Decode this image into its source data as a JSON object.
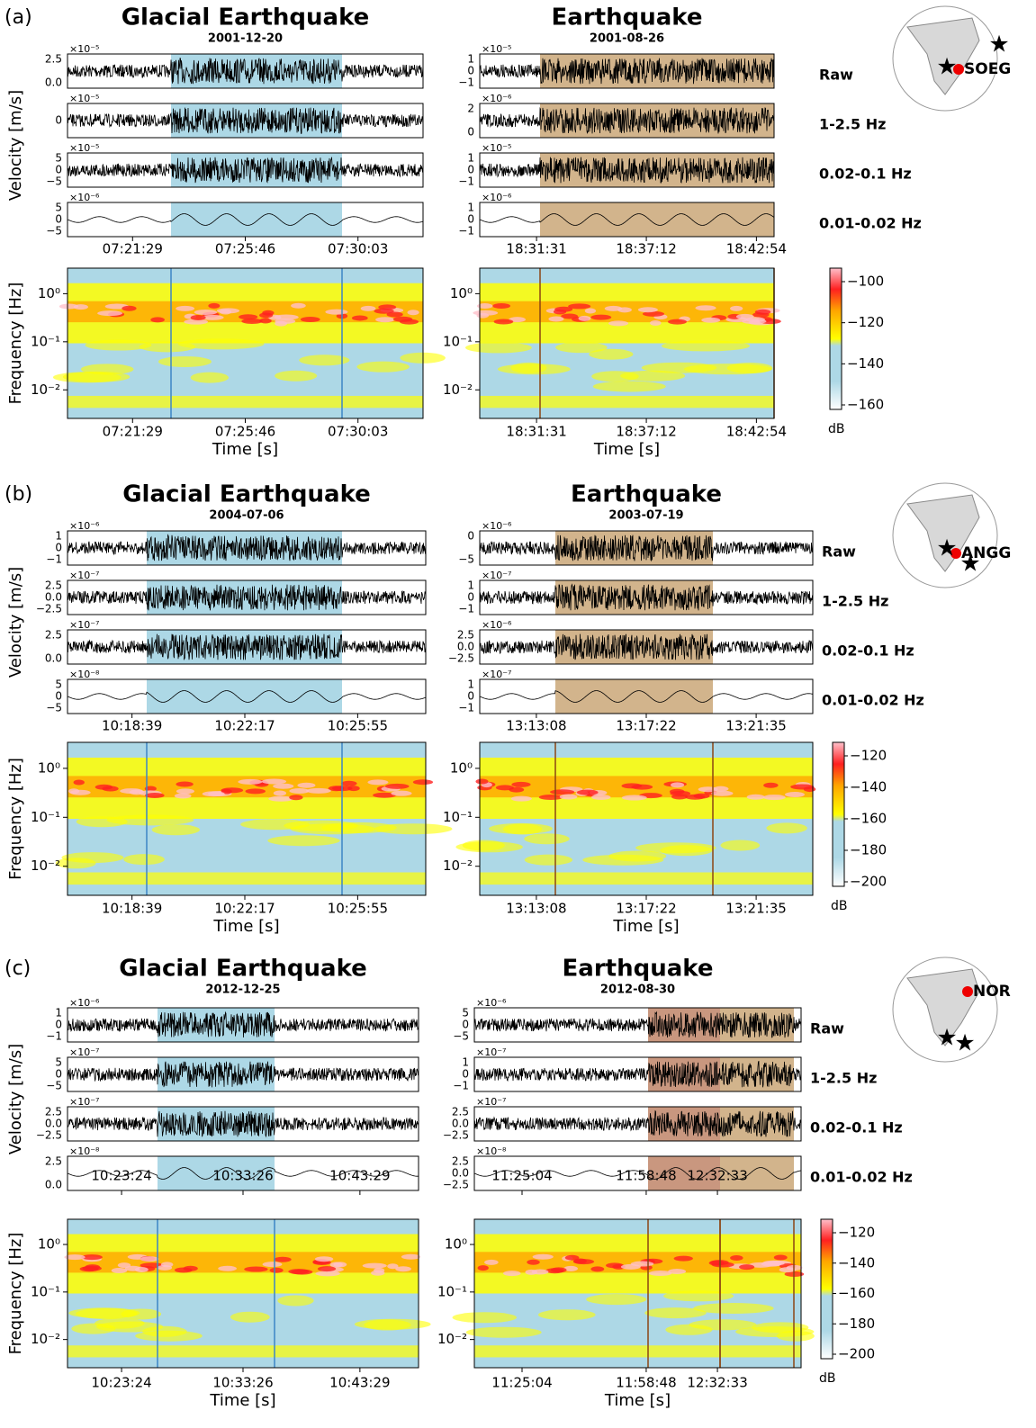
{
  "figure": {
    "ylabel_velocity": "Velocity [m/s]",
    "ylabel_frequency": "Frequency [Hz]",
    "xlabel": "Time [s]",
    "colorbar_unit": "dB",
    "freq_ticks": [
      "10⁰",
      "10⁻¹",
      "10⁻²"
    ],
    "rows": [
      {
        "label": "(a)",
        "station": "SOEG",
        "bands": [
          "Raw",
          "1-2.5 Hz",
          "0.02-0.1 Hz",
          "0.01-0.02 Hz"
        ],
        "colorbar_ticks": [
          "−100",
          "−120",
          "−140",
          "−160"
        ],
        "columns": [
          {
            "title": "Glacial Earthquake",
            "date": "2001-12-20",
            "times": [
              "07:21:29",
              "07:25:46",
              "07:30:03"
            ],
            "traces": [
              {
                "scale": "×10⁻⁵",
                "yticks": [
                  "2.5",
                  "0.0"
                ]
              },
              {
                "scale": "×10⁻⁵",
                "yticks": [
                  "0"
                ]
              },
              {
                "scale": "×10⁻⁵",
                "yticks": [
                  "5",
                  "0",
                  "−5"
                ]
              },
              {
                "scale": "×10⁻⁶",
                "yticks": [
                  "5",
                  "0",
                  "−5"
                ]
              }
            ]
          },
          {
            "title": "Earthquake",
            "date": "2001-08-26",
            "times": [
              "18:31:31",
              "18:37:12",
              "18:42:54"
            ],
            "traces": [
              {
                "scale": "×10⁻⁵",
                "yticks": [
                  "1",
                  "0",
                  "−1"
                ]
              },
              {
                "scale": "×10⁻⁶",
                "yticks": [
                  "2",
                  "0"
                ]
              },
              {
                "scale": "×10⁻⁵",
                "yticks": [
                  "1",
                  "0",
                  "−1"
                ]
              },
              {
                "scale": "×10⁻⁶",
                "yticks": [
                  "1",
                  "0",
                  "−1"
                ]
              }
            ]
          }
        ]
      },
      {
        "label": "(b)",
        "station": "ANGG",
        "bands": [
          "Raw",
          "1-2.5 Hz",
          "0.02-0.1 Hz",
          "0.01-0.02 Hz"
        ],
        "colorbar_ticks": [
          "−120",
          "−140",
          "−160",
          "−180",
          "−200"
        ],
        "columns": [
          {
            "title": "Glacial Earthquake",
            "date": "2004-07-06",
            "times": [
              "10:18:39",
              "10:22:17",
              "10:25:55"
            ],
            "traces": [
              {
                "scale": "×10⁻⁶",
                "yticks": [
                  "1",
                  "0",
                  "−1"
                ]
              },
              {
                "scale": "×10⁻⁷",
                "yticks": [
                  "2.5",
                  "0.0",
                  "−2.5"
                ]
              },
              {
                "scale": "×10⁻⁷",
                "yticks": [
                  "2.5",
                  "0.0"
                ]
              },
              {
                "scale": "×10⁻⁸",
                "yticks": [
                  "5",
                  "0",
                  "−5"
                ]
              }
            ]
          },
          {
            "title": "Earthquake",
            "date": "2003-07-19",
            "times": [
              "13:13:08",
              "13:17:22",
              "13:21:35"
            ],
            "traces": [
              {
                "scale": "×10⁻⁶",
                "yticks": [
                  "0",
                  "−5"
                ]
              },
              {
                "scale": "×10⁻⁷",
                "yticks": [
                  "1",
                  "0",
                  "−1"
                ]
              },
              {
                "scale": "×10⁻⁶",
                "yticks": [
                  "2.5",
                  "0.0",
                  "−2.5"
                ]
              },
              {
                "scale": "×10⁻⁷",
                "yticks": [
                  "1",
                  "0",
                  "−1"
                ]
              }
            ]
          }
        ]
      },
      {
        "label": "(c)",
        "station": "NOR",
        "bands": [
          "Raw",
          "1-2.5 Hz",
          "0.02-0.1 Hz",
          "0.01-0.02 Hz"
        ],
        "colorbar_ticks": [
          "−120",
          "−140",
          "−160",
          "−180",
          "−200"
        ],
        "columns": [
          {
            "title": "Glacial Earthquake",
            "date": "2012-12-25",
            "times": [
              "10:23:24",
              "10:33:26",
              "10:43:29"
            ],
            "traces": [
              {
                "scale": "×10⁻⁶",
                "yticks": [
                  "1",
                  "0",
                  "−1"
                ]
              },
              {
                "scale": "×10⁻⁷",
                "yticks": [
                  "5",
                  "0",
                  "−5"
                ]
              },
              {
                "scale": "×10⁻⁷",
                "yticks": [
                  "2.5",
                  "0.0",
                  "−2.5"
                ]
              },
              {
                "scale": "×10⁻⁸",
                "yticks": [
                  "2.5",
                  "0.0"
                ]
              }
            ]
          },
          {
            "title": "Earthquake",
            "date": "2012-08-30",
            "times": [
              "11:25:04",
              "11:58:48",
              "12:32:33"
            ],
            "traces": [
              {
                "scale": "×10⁻⁶",
                "yticks": [
                  "5",
                  "0",
                  "−5"
                ]
              },
              {
                "scale": "×10⁻⁷",
                "yticks": [
                  "1",
                  "0",
                  "−1"
                ]
              },
              {
                "scale": "×10⁻⁷",
                "yticks": [
                  "2.5",
                  "0.0",
                  "−2.5"
                ]
              },
              {
                "scale": "×10⁻⁸",
                "yticks": [
                  "2.5",
                  "0.0",
                  "−2.5"
                ]
              }
            ]
          }
        ]
      }
    ]
  }
}
